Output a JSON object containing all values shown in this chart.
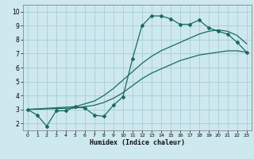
{
  "xlabel": "Humidex (Indice chaleur)",
  "bg_color": "#cde8ee",
  "grid_color": "#aacdd6",
  "line_color": "#1a6b5e",
  "xlim": [
    -0.5,
    23.5
  ],
  "ylim": [
    1.5,
    10.5
  ],
  "xtick_labels": [
    "0",
    "1",
    "2",
    "3",
    "4",
    "5",
    "6",
    "7",
    "8",
    "9",
    "10",
    "11",
    "12",
    "13",
    "14",
    "15",
    "16",
    "17",
    "18",
    "19",
    "20",
    "21",
    "22",
    "23"
  ],
  "xtick_vals": [
    0,
    1,
    2,
    3,
    4,
    5,
    6,
    7,
    8,
    9,
    10,
    11,
    12,
    13,
    14,
    15,
    16,
    17,
    18,
    19,
    20,
    21,
    22,
    23
  ],
  "ytick_vals": [
    2,
    3,
    4,
    5,
    6,
    7,
    8,
    9,
    10
  ],
  "line1_x": [
    0,
    1,
    2,
    3,
    4,
    5,
    6,
    7,
    8,
    9,
    10,
    11,
    12,
    13,
    14,
    15,
    16,
    17,
    18,
    19,
    20,
    21,
    22,
    23
  ],
  "line1_y": [
    3.0,
    2.6,
    1.8,
    2.9,
    2.9,
    3.2,
    3.1,
    2.6,
    2.5,
    3.3,
    3.9,
    6.6,
    9.0,
    9.7,
    9.7,
    9.5,
    9.1,
    9.1,
    9.4,
    8.85,
    8.6,
    8.4,
    7.8,
    7.1
  ],
  "line2_x": [
    0,
    5,
    6,
    7,
    8,
    9,
    10,
    11,
    12,
    13,
    14,
    15,
    16,
    17,
    18,
    19,
    20,
    21,
    22,
    23
  ],
  "line2_y": [
    3.0,
    3.1,
    3.2,
    3.3,
    3.5,
    3.8,
    4.2,
    4.7,
    5.2,
    5.6,
    5.9,
    6.2,
    6.5,
    6.7,
    6.9,
    7.0,
    7.1,
    7.2,
    7.2,
    7.1
  ],
  "line3_x": [
    0,
    5,
    6,
    7,
    8,
    9,
    10,
    11,
    12,
    13,
    14,
    15,
    16,
    17,
    18,
    19,
    20,
    21,
    22,
    23
  ],
  "line3_y": [
    3.0,
    3.2,
    3.4,
    3.6,
    4.0,
    4.5,
    5.1,
    5.7,
    6.3,
    6.8,
    7.2,
    7.5,
    7.8,
    8.1,
    8.4,
    8.6,
    8.7,
    8.6,
    8.3,
    7.7
  ]
}
